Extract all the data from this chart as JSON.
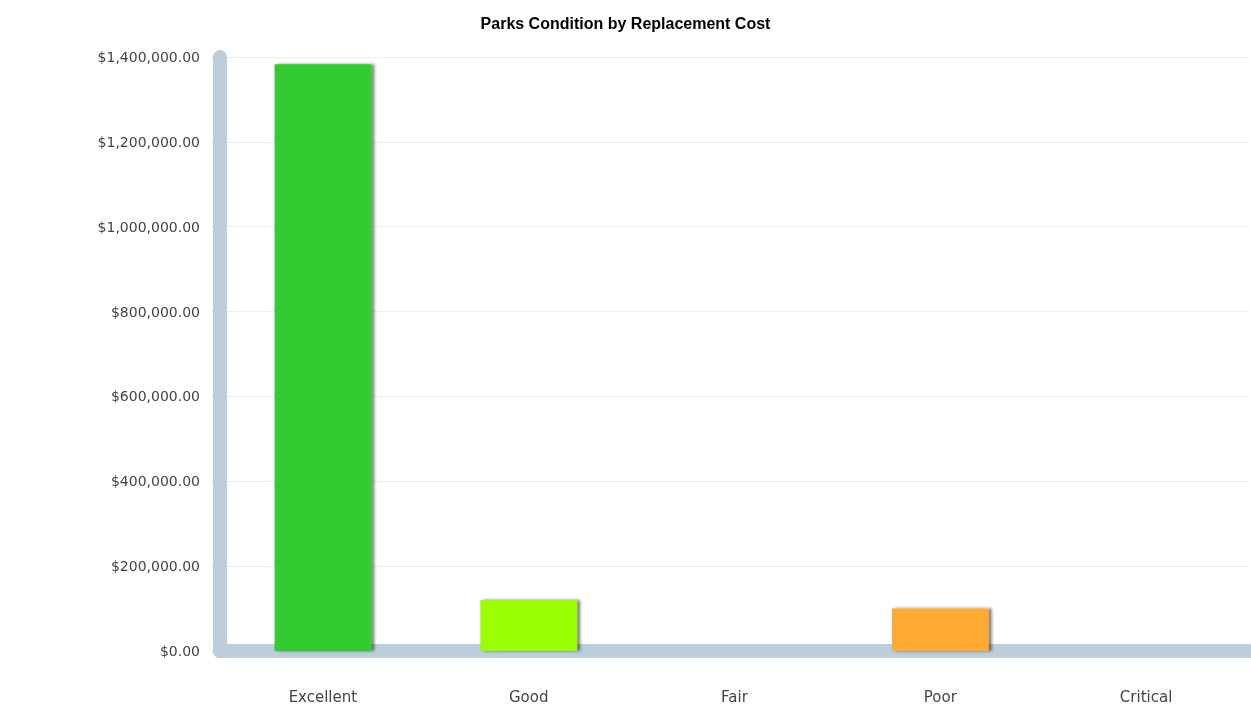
{
  "chart_data": {
    "type": "bar",
    "title": "Parks Condition by Replacement Cost",
    "categories": [
      "Excellent",
      "Good",
      "Fair",
      "Poor",
      "Critical"
    ],
    "values": [
      1383000,
      120000,
      0,
      100000,
      0
    ],
    "colors": [
      "#33cc33",
      "#99ff00",
      "#ffff00",
      "#ffaa33",
      "#ff3333"
    ],
    "ylim": [
      0,
      1400000
    ],
    "yticks": [
      {
        "value": 0,
        "label": "$0.00"
      },
      {
        "value": 200000,
        "label": "$200,000.00"
      },
      {
        "value": 400000,
        "label": "$400,000.00"
      },
      {
        "value": 600000,
        "label": "$600,000.00"
      },
      {
        "value": 800000,
        "label": "$800,000.00"
      },
      {
        "value": 1000000,
        "label": "$1,000,000.00"
      },
      {
        "value": 1200000,
        "label": "$1,200,000.00"
      },
      {
        "value": 1400000,
        "label": "$1,400,000.00"
      }
    ],
    "grid": "y"
  }
}
